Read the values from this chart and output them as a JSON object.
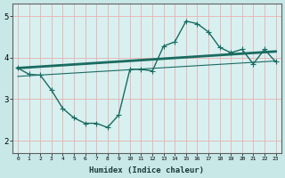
{
  "background_color": "#c8e8e8",
  "plot_bg_color": "#d8f0f0",
  "grid_color": "#e8b0b0",
  "line_color": "#1a6b60",
  "x_label": "Humidex (Indice chaleur)",
  "ylim": [
    1.7,
    5.3
  ],
  "xlim": [
    -0.5,
    23.5
  ],
  "yticks": [
    2,
    3,
    4,
    5
  ],
  "xticks": [
    0,
    1,
    2,
    3,
    4,
    5,
    6,
    7,
    8,
    9,
    10,
    11,
    12,
    13,
    14,
    15,
    16,
    17,
    18,
    19,
    20,
    21,
    22,
    23
  ],
  "series1_x": [
    0,
    1,
    2,
    3,
    4,
    5,
    6,
    7,
    8,
    9,
    10,
    11,
    12,
    13,
    14,
    15,
    16,
    17,
    18,
    19,
    20,
    21,
    22,
    23
  ],
  "series1_y": [
    3.75,
    3.6,
    3.58,
    3.22,
    2.78,
    2.55,
    2.42,
    2.42,
    2.32,
    2.62,
    3.72,
    3.72,
    3.68,
    4.28,
    4.38,
    4.88,
    4.82,
    4.62,
    4.25,
    4.12,
    4.2,
    3.85,
    4.2,
    3.9
  ],
  "series2_x": [
    0,
    23
  ],
  "series2_y": [
    3.75,
    4.15
  ],
  "series3_x": [
    0,
    23
  ],
  "series3_y": [
    3.55,
    3.92
  ],
  "marker": "+",
  "markersize": 4,
  "linewidth": 1.0
}
